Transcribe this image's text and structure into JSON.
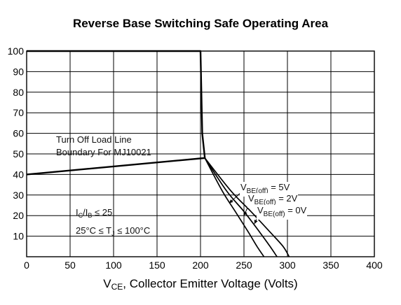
{
  "chart_data": {
    "type": "line",
    "title": "Reverse Base Switching Safe Operating Area",
    "xlabel": {
      "symbol": "V",
      "sub": "CE",
      "rest": ", Collector Emitter Voltage (Volts)"
    },
    "ylabel": "",
    "xlim": [
      0,
      400
    ],
    "ylim": [
      0,
      100
    ],
    "x_ticks": [
      "0",
      "50",
      "100",
      "150",
      "200",
      "250",
      "300",
      "350",
      "400"
    ],
    "y_ticks": [
      "10",
      "20",
      "30",
      "40",
      "50",
      "60",
      "70",
      "80",
      "90",
      "100"
    ],
    "grid": true,
    "boundary": {
      "name": "Turn Off Load Line Boundary For MJ10021",
      "points": [
        [
          0,
          100
        ],
        [
          200,
          100
        ],
        [
          202,
          60
        ],
        [
          205,
          48
        ],
        [
          0,
          40
        ]
      ]
    },
    "series": [
      {
        "name": "5V",
        "points": [
          [
            205,
            48
          ],
          [
            225,
            32
          ],
          [
            240,
            22
          ],
          [
            255,
            12
          ],
          [
            265,
            5
          ],
          [
            273,
            0
          ]
        ]
      },
      {
        "name": "2V",
        "points": [
          [
            205,
            48
          ],
          [
            230,
            32
          ],
          [
            250,
            22
          ],
          [
            268,
            12
          ],
          [
            280,
            5
          ],
          [
            288,
            0
          ]
        ]
      },
      {
        "name": "0V",
        "points": [
          [
            205,
            48
          ],
          [
            235,
            32
          ],
          [
            258,
            22
          ],
          [
            280,
            12
          ],
          [
            295,
            5
          ],
          [
            302,
            0
          ]
        ]
      }
    ],
    "annotations": {
      "boundary_line1": "Turn Off Load Line",
      "boundary_line2": "Boundary For MJ10021",
      "cond1": {
        "a": "I",
        "a_sub": "C",
        "b": "/I",
        "b_sub": "B",
        "rest": " ≤ 25"
      },
      "cond2": {
        "pre": "25°C ≤ T",
        "sub": "J",
        "post": " ≤ 100°C"
      },
      "vbe_prefix": "V",
      "vbe_sub": "BE(off)",
      "vbe_5": " = 5V",
      "vbe_2": " = 2V",
      "vbe_0": " = 0V"
    }
  }
}
